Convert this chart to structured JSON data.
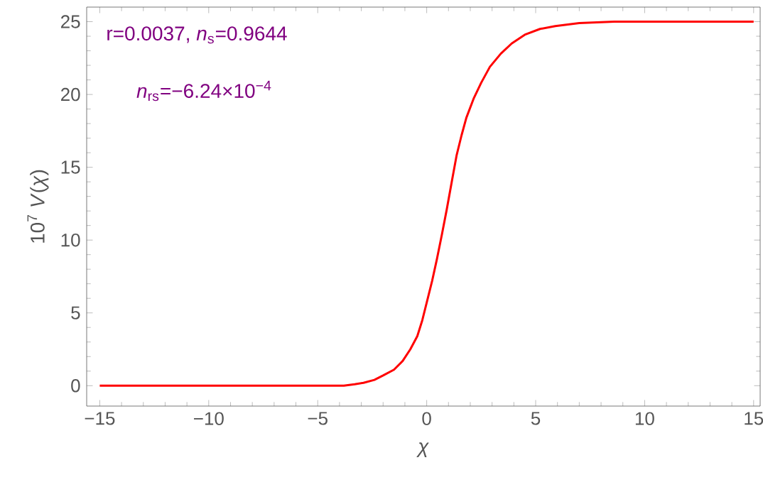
{
  "chart_data": {
    "type": "line",
    "xlabel": "*χ*",
    "ylabel": "10$^{7}$ *V*(*χ*)",
    "annotations": [
      "r=0.0037, *n*$_{s}$=0.9644",
      "*n*$_{rs}$=−6.24×10$^{−4}$"
    ],
    "series": [
      {
        "color": "#ff0000",
        "x": [
          -15,
          -10,
          -6,
          -3.8,
          -3.3,
          -2.9,
          -2.4,
          -2.0,
          -1.5,
          -1.1,
          -0.75,
          -0.43,
          -0.2,
          0,
          0.25,
          0.47,
          0.7,
          0.92,
          1.15,
          1.37,
          1.6,
          1.82,
          2.15,
          2.5,
          2.9,
          3.4,
          3.9,
          4.5,
          5.2,
          5.9,
          7,
          8.6,
          12,
          15
        ],
        "values": [
          0,
          0,
          0,
          0,
          0.1,
          0.2,
          0.4,
          0.7,
          1.1,
          1.7,
          2.5,
          3.4,
          4.5,
          5.7,
          7.2,
          8.7,
          10.4,
          12.1,
          14.0,
          15.8,
          17.2,
          18.4,
          19.7,
          20.8,
          21.9,
          22.8,
          23.5,
          24.1,
          24.5,
          24.7,
          24.9,
          25.0,
          25.0,
          25.0
        ]
      }
    ],
    "xlim": [
      -15.6,
      15.3
    ],
    "ylim": [
      -1.4,
      26
    ],
    "xticks": [
      {
        "value": -15,
        "label": "−15"
      },
      {
        "value": -10,
        "label": "−10"
      },
      {
        "value": -5,
        "label": "−5"
      },
      0,
      5,
      10,
      15
    ],
    "yticks": [
      0,
      5,
      10,
      15,
      20,
      25
    ],
    "grid": false,
    "marker": "none",
    "line_style": "solid"
  }
}
